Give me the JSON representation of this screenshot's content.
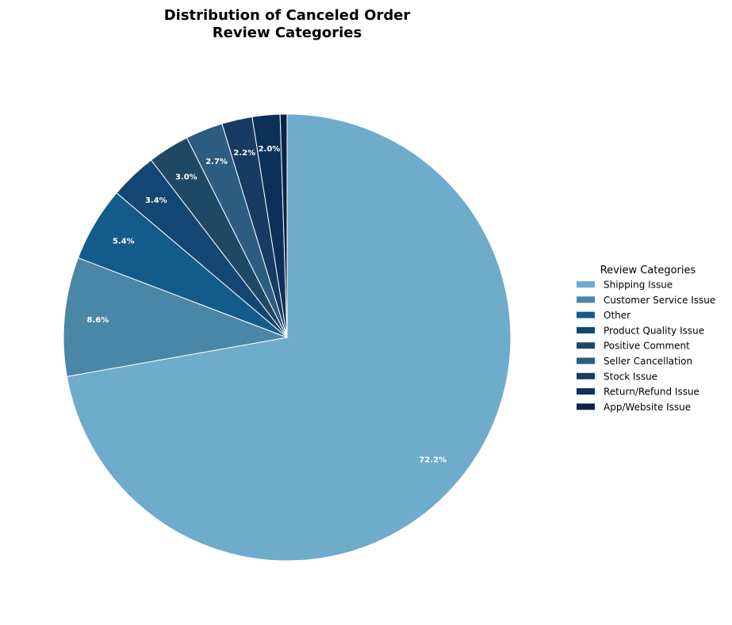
{
  "chart_data": {
    "type": "pie",
    "title_lines": [
      "Distribution of Canceled Order",
      "Review Categories"
    ],
    "legend_title": "Review Categories",
    "legend_placement": "right",
    "start_angle_deg": 90,
    "direction": "clockwise",
    "edge_color": "#ffffff",
    "slices": [
      {
        "name": "Shipping Issue",
        "value": 72.2,
        "label": "72.2%",
        "color": "#6fabca"
      },
      {
        "name": "Customer Service Issue",
        "value": 8.6,
        "label": "8.6%",
        "color": "#4a86a8"
      },
      {
        "name": "Other",
        "value": 5.4,
        "label": "5.4%",
        "color": "#135c89"
      },
      {
        "name": "Product Quality Issue",
        "value": 3.4,
        "label": "3.4%",
        "color": "#134672"
      },
      {
        "name": "Positive Comment",
        "value": 3.0,
        "label": "3.0%",
        "color": "#1f4865"
      },
      {
        "name": "Seller Cancellation",
        "value": 2.7,
        "label": "2.7%",
        "color": "#2c5d80"
      },
      {
        "name": "Stock Issue",
        "value": 2.2,
        "label": "2.2%",
        "color": "#173b61"
      },
      {
        "name": "Return/Refund Issue",
        "value": 2.0,
        "label": "2.0%",
        "color": "#0b3158"
      },
      {
        "name": "App/Website Issue",
        "value": 0.5,
        "label": "",
        "color": "#0b2443"
      }
    ]
  }
}
